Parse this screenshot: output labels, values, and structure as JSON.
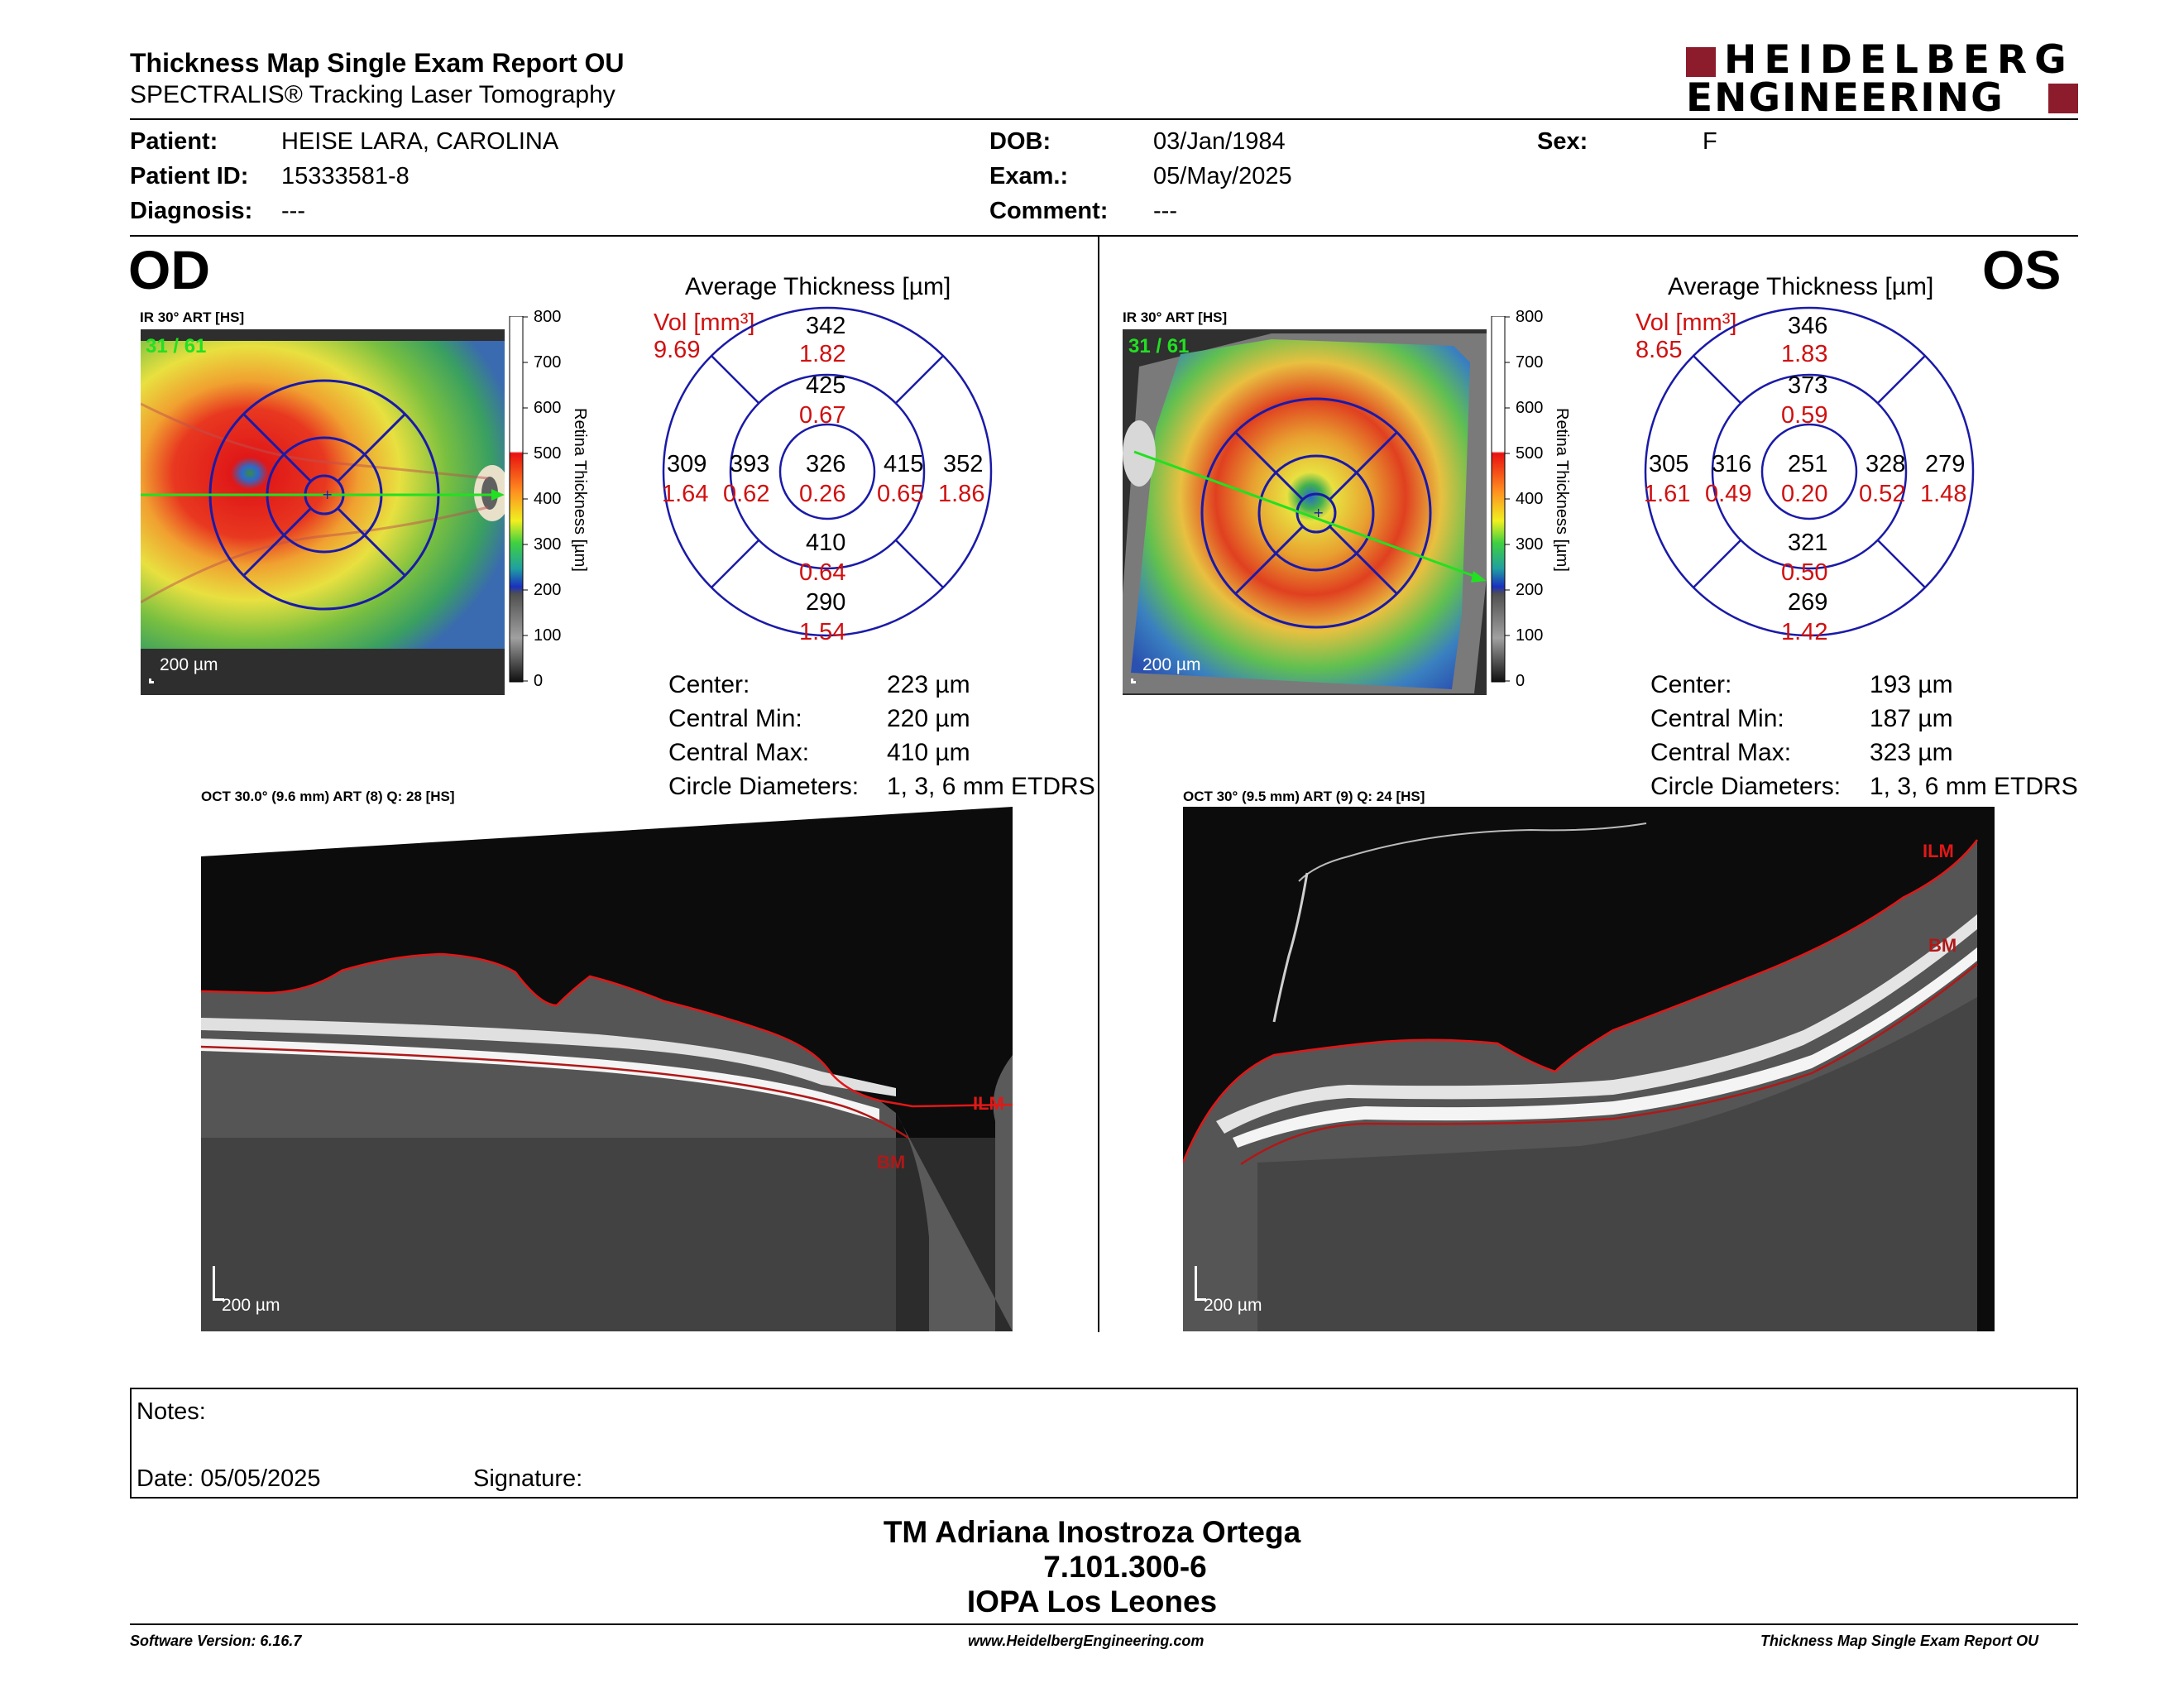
{
  "header": {
    "title": "Thickness Map Single Exam Report OU",
    "subtitle": "SPECTRALIS® Tracking Laser Tomography",
    "logo_line1": "HEIDELBERG",
    "logo_line2": "ENGINEERING"
  },
  "patient": {
    "patient_label": "Patient:",
    "patient_value": "HEISE LARA, CAROLINA",
    "id_label": "Patient ID:",
    "id_value": "15333581-8",
    "diagnosis_label": "Diagnosis:",
    "diagnosis_value": "---",
    "dob_label": "DOB:",
    "dob_value": "03/Jan/1984",
    "exam_label": "Exam.:",
    "exam_value": "05/May/2025",
    "comment_label": "Comment:",
    "comment_value": "---",
    "sex_label": "Sex:",
    "sex_value": "F"
  },
  "scale": {
    "ticks": [
      "800",
      "700",
      "600",
      "500",
      "400",
      "300",
      "200",
      "100",
      "0"
    ],
    "label": "Retina Thickness [µm]"
  },
  "od": {
    "eye": "OD",
    "ir_label": "IR 30° ART [HS]",
    "frame": "31 / 61",
    "ir_scalebar": "200 µm",
    "avg_title": "Average Thickness [µm]",
    "vol_label": "Vol [mm³]",
    "vol_value": "9.69",
    "sectors": {
      "center": {
        "t": "326",
        "v": "0.26"
      },
      "inner_sup": {
        "t": "425",
        "v": "0.67"
      },
      "inner_inf": {
        "t": "410",
        "v": "0.64"
      },
      "inner_left": {
        "t": "393",
        "v": "0.62"
      },
      "inner_right": {
        "t": "415",
        "v": "0.65"
      },
      "outer_sup": {
        "t": "342",
        "v": "1.82"
      },
      "outer_inf": {
        "t": "290",
        "v": "1.54"
      },
      "outer_left": {
        "t": "309",
        "v": "1.64"
      },
      "outer_right": {
        "t": "352",
        "v": "1.86"
      }
    },
    "stats": {
      "center_label": "Center:",
      "center_value": "223 µm",
      "min_label": "Central Min:",
      "min_value": "220 µm",
      "max_label": "Central Max:",
      "max_value": "410 µm",
      "circ_label": "Circle Diameters:",
      "circ_value": "1, 3, 6 mm ETDRS"
    },
    "oct_label": "OCT 30.0° (9.6 mm) ART (8) Q: 28 [HS]",
    "oct_scalebar": "200 µm",
    "ilm": "ILM",
    "bm": "BM"
  },
  "os": {
    "eye": "OS",
    "ir_label": "IR 30° ART [HS]",
    "frame": "31 / 61",
    "ir_scalebar": "200 µm",
    "avg_title": "Average Thickness [µm]",
    "vol_label": "Vol [mm³]",
    "vol_value": "8.65",
    "sectors": {
      "center": {
        "t": "251",
        "v": "0.20"
      },
      "inner_sup": {
        "t": "373",
        "v": "0.59"
      },
      "inner_inf": {
        "t": "321",
        "v": "0.50"
      },
      "inner_left": {
        "t": "316",
        "v": "0.49"
      },
      "inner_right": {
        "t": "328",
        "v": "0.52"
      },
      "outer_sup": {
        "t": "346",
        "v": "1.83"
      },
      "outer_inf": {
        "t": "269",
        "v": "1.42"
      },
      "outer_left": {
        "t": "305",
        "v": "1.61"
      },
      "outer_right": {
        "t": "279",
        "v": "1.48"
      }
    },
    "stats": {
      "center_label": "Center:",
      "center_value": "193 µm",
      "min_label": "Central Min:",
      "min_value": "187 µm",
      "max_label": "Central Max:",
      "max_value": "323 µm",
      "circ_label": "Circle Diameters:",
      "circ_value": "1, 3, 6 mm ETDRS"
    },
    "oct_label": "OCT 30° (9.5 mm) ART (9) Q: 24 [HS]",
    "oct_scalebar": "200 µm",
    "ilm": "ILM",
    "bm": "BM"
  },
  "notes": {
    "notes_label": "Notes:",
    "date_label": "Date: 05/05/2025",
    "signature_label": "Signature:"
  },
  "signature_block": {
    "line1": "TM Adriana Inostroza Ortega",
    "line2": "7.101.300-6",
    "line3": "IOPA Los Leones"
  },
  "footer": {
    "software": "Software Version: 6.16.7",
    "website": "www.HeidelbergEngineering.com",
    "report": "Thickness Map Single Exam Report OU"
  },
  "colors": {
    "red_text": "#d01010",
    "grid_blue": "#1a1aa8",
    "scan_line": "#22e022",
    "logo_red": "#8c1c2c"
  }
}
